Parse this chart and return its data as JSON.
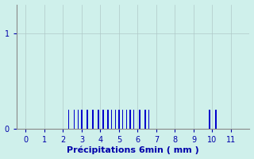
{
  "title": "",
  "xlabel": "Précipitations 6min ( mm )",
  "ylabel": "",
  "xlim": [
    -0.5,
    12
  ],
  "ylim": [
    0,
    1.3
  ],
  "yticks": [
    0,
    1
  ],
  "xticks": [
    0,
    1,
    2,
    3,
    4,
    5,
    6,
    7,
    8,
    9,
    10,
    11
  ],
  "bar_positions": [
    2.3,
    2.6,
    2.8,
    3.0,
    3.3,
    3.6,
    3.9,
    4.15,
    4.4,
    4.6,
    4.8,
    5.0,
    5.2,
    5.4,
    5.6,
    5.8,
    6.1,
    6.4,
    6.6,
    9.85,
    10.2
  ],
  "bar_heights": [
    0.2,
    0.2,
    0.2,
    0.2,
    0.2,
    0.2,
    0.2,
    0.2,
    0.2,
    0.2,
    0.2,
    0.2,
    0.2,
    0.2,
    0.2,
    0.2,
    0.2,
    0.2,
    0.2,
    0.2,
    0.2
  ],
  "bar_width": 0.06,
  "bar_color": "#0000cc",
  "bg_color": "#cff0eb",
  "grid_color": "#b0c8c8",
  "spine_color": "#888888",
  "tick_color": "#0000aa",
  "label_color": "#0000aa",
  "label_fontsize": 8,
  "tick_fontsize": 7
}
